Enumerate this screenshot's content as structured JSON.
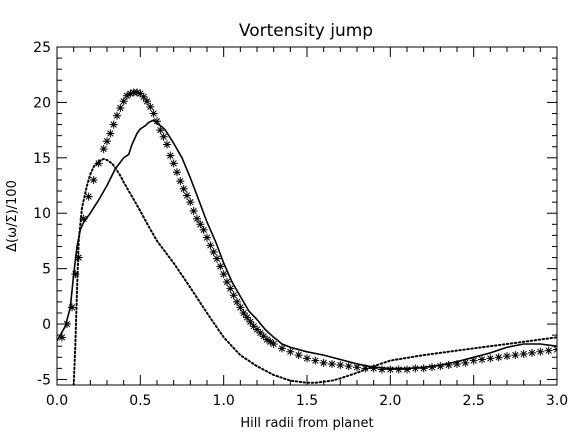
{
  "chart_data": {
    "type": "line",
    "title": "Vortensity jump",
    "xlabel": "Hill radii from planet",
    "ylabel": "Δ(ω/Σ)/100",
    "xlim": [
      0.0,
      3.0
    ],
    "ylim": [
      -5.5,
      25
    ],
    "x_ticks": [
      "0.0",
      "0.5",
      "1.0",
      "1.5",
      "2.0",
      "2.5",
      "3.0"
    ],
    "y_ticks": [
      "-5",
      "0",
      "5",
      "10",
      "15",
      "20",
      "25"
    ],
    "grid": false,
    "colors": {
      "line": "#000000",
      "background": "#ffffff"
    },
    "series": [
      {
        "style": "solid",
        "x": [
          0.0,
          0.02,
          0.05,
          0.08,
          0.1,
          0.12,
          0.14,
          0.16,
          0.18,
          0.2,
          0.22,
          0.25,
          0.3,
          0.35,
          0.4,
          0.43,
          0.45,
          0.48,
          0.5,
          0.53,
          0.55,
          0.58,
          0.6,
          0.63,
          0.65,
          0.68,
          0.7,
          0.75,
          0.8,
          0.85,
          0.9,
          0.95,
          1.0,
          1.05,
          1.1,
          1.15,
          1.2,
          1.25,
          1.3,
          1.35,
          1.4,
          1.5,
          1.6,
          1.7,
          1.8,
          1.9,
          2.0,
          2.1,
          2.2,
          2.3,
          2.4,
          2.5,
          2.6,
          2.7,
          2.8,
          2.9,
          3.0
        ],
        "y": [
          -1.5,
          -1.0,
          -0.2,
          1.5,
          4.5,
          7.0,
          8.5,
          9.2,
          9.6,
          10.0,
          10.5,
          11.2,
          12.5,
          14.0,
          15.0,
          15.3,
          16.2,
          17.2,
          17.6,
          17.9,
          18.2,
          18.4,
          18.1,
          17.8,
          17.5,
          16.8,
          16.3,
          15.0,
          13.2,
          11.2,
          9.2,
          7.5,
          5.5,
          3.8,
          2.5,
          1.2,
          0.4,
          -0.5,
          -1.2,
          -1.8,
          -2.1,
          -2.5,
          -2.8,
          -3.2,
          -3.6,
          -3.9,
          -4.0,
          -4.0,
          -3.9,
          -3.7,
          -3.4,
          -3.0,
          -2.6,
          -2.1,
          -1.8,
          -1.8,
          -2.0
        ]
      },
      {
        "style": "dotted",
        "x": [
          0.1,
          0.11,
          0.12,
          0.13,
          0.15,
          0.18,
          0.2,
          0.22,
          0.25,
          0.28,
          0.3,
          0.33,
          0.35,
          0.38,
          0.4,
          0.45,
          0.5,
          0.55,
          0.6,
          0.7,
          0.8,
          0.9,
          1.0,
          1.1,
          1.2,
          1.3,
          1.4,
          1.5,
          1.55,
          1.6,
          1.65,
          1.7,
          1.8,
          1.9,
          2.0,
          2.2,
          2.4,
          2.6,
          2.8,
          3.0
        ],
        "y": [
          -5.5,
          -2.0,
          3.0,
          7.5,
          10.5,
          12.5,
          13.5,
          14.2,
          14.7,
          14.9,
          14.8,
          14.5,
          14.1,
          13.4,
          12.8,
          11.5,
          10.2,
          8.8,
          7.5,
          5.5,
          3.3,
          1.0,
          -1.2,
          -2.8,
          -3.8,
          -4.6,
          -5.1,
          -5.3,
          -5.3,
          -5.2,
          -5.1,
          -4.9,
          -4.4,
          -3.8,
          -3.3,
          -2.8,
          -2.4,
          -2.0,
          -1.6,
          -1.2
        ]
      },
      {
        "style": "asterisk",
        "x": [
          0.03,
          0.06,
          0.09,
          0.11,
          0.13,
          0.16,
          0.19,
          0.22,
          0.25,
          0.28,
          0.3,
          0.32,
          0.34,
          0.36,
          0.38,
          0.4,
          0.42,
          0.44,
          0.46,
          0.48,
          0.5,
          0.52,
          0.54,
          0.56,
          0.58,
          0.6,
          0.62,
          0.64,
          0.66,
          0.68,
          0.7,
          0.72,
          0.74,
          0.76,
          0.78,
          0.8,
          0.82,
          0.84,
          0.86,
          0.88,
          0.9,
          0.92,
          0.94,
          0.96,
          0.98,
          1.0,
          1.02,
          1.04,
          1.06,
          1.08,
          1.1,
          1.12,
          1.14,
          1.16,
          1.18,
          1.2,
          1.22,
          1.24,
          1.26,
          1.28,
          1.3,
          1.35,
          1.4,
          1.45,
          1.5,
          1.55,
          1.6,
          1.65,
          1.7,
          1.75,
          1.8,
          1.85,
          1.9,
          1.95,
          2.0,
          2.05,
          2.1,
          2.15,
          2.2,
          2.25,
          2.3,
          2.35,
          2.4,
          2.45,
          2.5,
          2.55,
          2.6,
          2.65,
          2.7,
          2.75,
          2.8,
          2.85,
          2.9,
          2.95,
          3.0
        ],
        "y": [
          -1.2,
          0.0,
          1.5,
          4.5,
          6.0,
          9.5,
          11.5,
          13.0,
          14.5,
          15.8,
          16.5,
          17.2,
          18.0,
          18.8,
          19.5,
          20.1,
          20.6,
          20.8,
          20.9,
          20.9,
          20.8,
          20.5,
          20.1,
          19.6,
          19.0,
          18.3,
          17.5,
          16.9,
          16.2,
          15.2,
          14.5,
          13.7,
          12.9,
          12.2,
          11.6,
          11.0,
          10.2,
          9.5,
          9.0,
          8.5,
          7.8,
          7.1,
          6.5,
          5.9,
          5.2,
          4.5,
          3.8,
          3.2,
          2.6,
          2.0,
          1.5,
          1.0,
          0.6,
          0.2,
          -0.2,
          -0.5,
          -0.8,
          -1.1,
          -1.4,
          -1.6,
          -1.8,
          -2.2,
          -2.5,
          -2.8,
          -3.1,
          -3.3,
          -3.5,
          -3.6,
          -3.7,
          -3.8,
          -3.9,
          -4.0,
          -4.0,
          -4.1,
          -4.1,
          -4.1,
          -4.1,
          -4.0,
          -4.0,
          -3.9,
          -3.8,
          -3.7,
          -3.6,
          -3.5,
          -3.3,
          -3.2,
          -3.1,
          -3.0,
          -2.9,
          -2.8,
          -2.7,
          -2.6,
          -2.5,
          -2.4,
          -2.3
        ]
      }
    ]
  }
}
